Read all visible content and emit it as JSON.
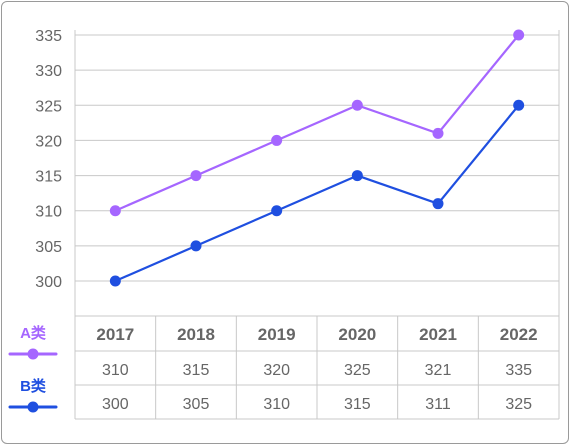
{
  "chart_data": {
    "type": "line",
    "categories": [
      "2017",
      "2018",
      "2019",
      "2020",
      "2021",
      "2022"
    ],
    "series": [
      {
        "name": "A类",
        "values": [
          310,
          315,
          320,
          325,
          321,
          335
        ],
        "color": "#a566ff"
      },
      {
        "name": "B类",
        "values": [
          300,
          305,
          310,
          315,
          311,
          325
        ],
        "color": "#1f4fe0"
      }
    ],
    "yticks": [
      300,
      305,
      310,
      315,
      320,
      325,
      330,
      335
    ],
    "ylim": [
      300,
      335
    ],
    "grid": true,
    "legend": "left-of-table",
    "table_values": [
      [
        "310",
        "315",
        "320",
        "325",
        "321",
        "335"
      ],
      [
        "300",
        "305",
        "310",
        "315",
        "311",
        "325"
      ]
    ]
  }
}
